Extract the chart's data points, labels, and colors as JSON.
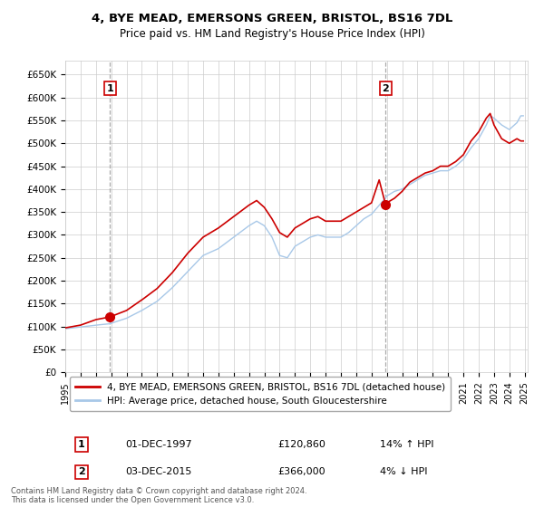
{
  "title": "4, BYE MEAD, EMERSONS GREEN, BRISTOL, BS16 7DL",
  "subtitle": "Price paid vs. HM Land Registry's House Price Index (HPI)",
  "ylabel_ticks": [
    "£0",
    "£50K",
    "£100K",
    "£150K",
    "£200K",
    "£250K",
    "£300K",
    "£350K",
    "£400K",
    "£450K",
    "£500K",
    "£550K",
    "£600K",
    "£650K"
  ],
  "ytick_values": [
    0,
    50000,
    100000,
    150000,
    200000,
    250000,
    300000,
    350000,
    400000,
    450000,
    500000,
    550000,
    600000,
    650000
  ],
  "ylim": [
    0,
    680000
  ],
  "sale1_price": 120860,
  "sale1_year": 1997.92,
  "sale1_date_str": "01-DEC-1997",
  "sale1_pct": "14% ↑ HPI",
  "sale2_price": 366000,
  "sale2_year": 2015.92,
  "sale2_date_str": "03-DEC-2015",
  "sale2_pct": "4% ↓ HPI",
  "legend_line1": "4, BYE MEAD, EMERSONS GREEN, BRISTOL, BS16 7DL (detached house)",
  "legend_line2": "HPI: Average price, detached house, South Gloucestershire",
  "footnote": "Contains HM Land Registry data © Crown copyright and database right 2024.\nThis data is licensed under the Open Government Licence v3.0.",
  "hpi_color": "#a8c8e8",
  "price_color": "#cc0000",
  "dashed_line_color": "#aaaaaa",
  "background_color": "#ffffff",
  "grid_color": "#cccccc",
  "label_box_color": "#cc0000"
}
